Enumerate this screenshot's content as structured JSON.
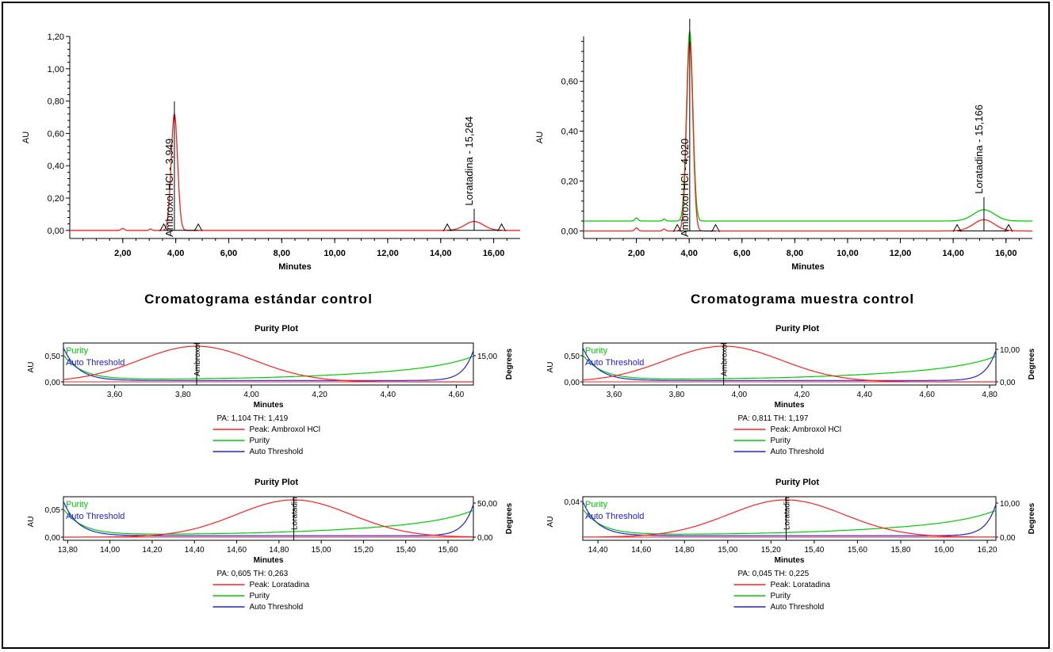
{
  "colors": {
    "peak": "#ff2020",
    "purity": "#00cc00",
    "threshold": "#2020e0"
  },
  "captions": {
    "left": "Cromatograma estándar control",
    "right": "Cromatograma muestra control"
  },
  "chart_data": [
    {
      "id": "chrom-std",
      "type": "line",
      "xlabel": "Minutes",
      "ylabel": "AU",
      "xlim": [
        0,
        17
      ],
      "ylim": [
        -0.05,
        1.2
      ],
      "xticks": [
        "2,00",
        "4,00",
        "6,00",
        "8,00",
        "10,00",
        "12,00",
        "14,00",
        "16,00"
      ],
      "yticks": [
        "0,00",
        "0,20",
        "0,40",
        "0,60",
        "0,80",
        "1,00",
        "1,20"
      ],
      "peaks": [
        {
          "label": "Ambroxol HCl - 3,949",
          "rt": 3.949,
          "height": 0.72,
          "width": 0.12
        },
        {
          "label": "Loratadina - 15,264",
          "rt": 15.264,
          "height": 0.055,
          "width": 0.35
        }
      ],
      "baseline_markers": [
        3.55,
        4.85,
        14.25,
        16.3
      ],
      "series": [
        {
          "color_key": "peak",
          "offset": 0.0
        }
      ]
    },
    {
      "id": "chrom-sample",
      "type": "line",
      "xlabel": "Minutes",
      "ylabel": "AU",
      "xlim": [
        0,
        17
      ],
      "ylim": [
        -0.03,
        0.78
      ],
      "xticks": [
        "2,00",
        "4,00",
        "6,00",
        "8,00",
        "10,00",
        "12,00",
        "14,00",
        "16,00"
      ],
      "yticks": [
        "0,00",
        "0,20",
        "0,40",
        "0,60"
      ],
      "peaks": [
        {
          "label": "Ambroxol HCl - 4,020",
          "rt": 4.02,
          "height": 0.76,
          "width": 0.12
        },
        {
          "label": "Loratadina - 15,166",
          "rt": 15.166,
          "height": 0.045,
          "width": 0.4
        }
      ],
      "baseline_markers": [
        3.55,
        5.0,
        14.15,
        16.1
      ],
      "series": [
        {
          "color_key": "purity",
          "offset": 0.04
        },
        {
          "color_key": "peak",
          "offset": 0.0
        }
      ]
    },
    {
      "id": "purity-std-ambroxol",
      "type": "line",
      "title": "Purity Plot",
      "xlabel": "Minutes",
      "ylabel": "AU",
      "y2label": "Degrees",
      "xlim": [
        3.45,
        4.65
      ],
      "xticks": [
        "3,60",
        "3,80",
        "4,00",
        "4,20",
        "4,40",
        "4,60"
      ],
      "xtick_values": [
        3.6,
        3.8,
        4.0,
        4.2,
        4.4,
        4.6
      ],
      "yticks": [
        "0,00",
        "0,50"
      ],
      "y2ticks": [
        "15,00"
      ],
      "apex": 3.84,
      "apex_label": "Ambroxol",
      "legend_in": [
        "Purity",
        "Auto Threshold"
      ],
      "pa_th": "PA:  1,104  TH:  1,419",
      "legend": [
        "Peak: Ambroxol HCl",
        "Purity",
        "Auto Threshold"
      ]
    },
    {
      "id": "purity-sample-ambroxol",
      "type": "line",
      "title": "Purity Plot",
      "xlabel": "Minutes",
      "ylabel": "AU",
      "y2label": "Degrees",
      "xlim": [
        3.5,
        4.82
      ],
      "xticks": [
        "3,60",
        "3,80",
        "4,00",
        "4,20",
        "4,40",
        "4,60",
        "4,80"
      ],
      "xtick_values": [
        3.6,
        3.8,
        4.0,
        4.2,
        4.4,
        4.6,
        4.8
      ],
      "yticks": [
        "0,00",
        "0,50"
      ],
      "y2ticks": [
        "0,00",
        "10,00"
      ],
      "apex": 3.95,
      "apex_label": "Ambroxol",
      "legend_in": [
        "Purity",
        "Auto Threshold"
      ],
      "pa_th": "PA:  0,811  TH:  1,197",
      "legend": [
        "Peak: Ambroxol HCl",
        "Purity",
        "Auto Threshold"
      ]
    },
    {
      "id": "purity-std-loratadina",
      "type": "line",
      "title": "Purity Plot",
      "xlabel": "Minutes",
      "ylabel": "AU",
      "y2label": "Degrees",
      "xlim": [
        13.78,
        15.72
      ],
      "xticks": [
        "13,80",
        "14,00",
        "14,20",
        "14,40",
        "14,60",
        "14,80",
        "15,00",
        "15,20",
        "15,40",
        "15,60"
      ],
      "xtick_values": [
        13.8,
        14.0,
        14.2,
        14.4,
        14.6,
        14.8,
        15.0,
        15.2,
        15.4,
        15.6
      ],
      "yticks": [
        "0,00",
        "0,05"
      ],
      "y2ticks": [
        "0,00",
        "50,00"
      ],
      "apex": 14.87,
      "apex_label": "Loratadin",
      "legend_in": [
        "Purity",
        "Auto Threshold"
      ],
      "pa_th": "PA:  0,605  TH:  0,263",
      "legend": [
        "Peak: Loratadina",
        "Purity",
        "Auto Threshold"
      ]
    },
    {
      "id": "purity-sample-loratadina",
      "type": "line",
      "title": "Purity Plot",
      "xlabel": "Minutes",
      "ylabel": "AU",
      "y2label": "Degrees",
      "xlim": [
        14.33,
        16.24
      ],
      "xticks": [
        "14,40",
        "14,60",
        "14,80",
        "15,00",
        "15,20",
        "15,40",
        "15,60",
        "15,80",
        "16,00",
        "16,20"
      ],
      "xtick_values": [
        14.4,
        14.6,
        14.8,
        15.0,
        15.2,
        15.4,
        15.6,
        15.8,
        16.0,
        16.2
      ],
      "yticks": [
        "0,04"
      ],
      "y2ticks": [
        "0,00",
        "10,00"
      ],
      "apex": 15.27,
      "apex_label": "Loratadin",
      "legend_in": [
        "Purity",
        "Auto Threshold"
      ],
      "pa_th": "PA:  0,045  TH:  0,225",
      "legend": [
        "Peak: Loratadina",
        "Purity",
        "Auto Threshold"
      ]
    }
  ]
}
